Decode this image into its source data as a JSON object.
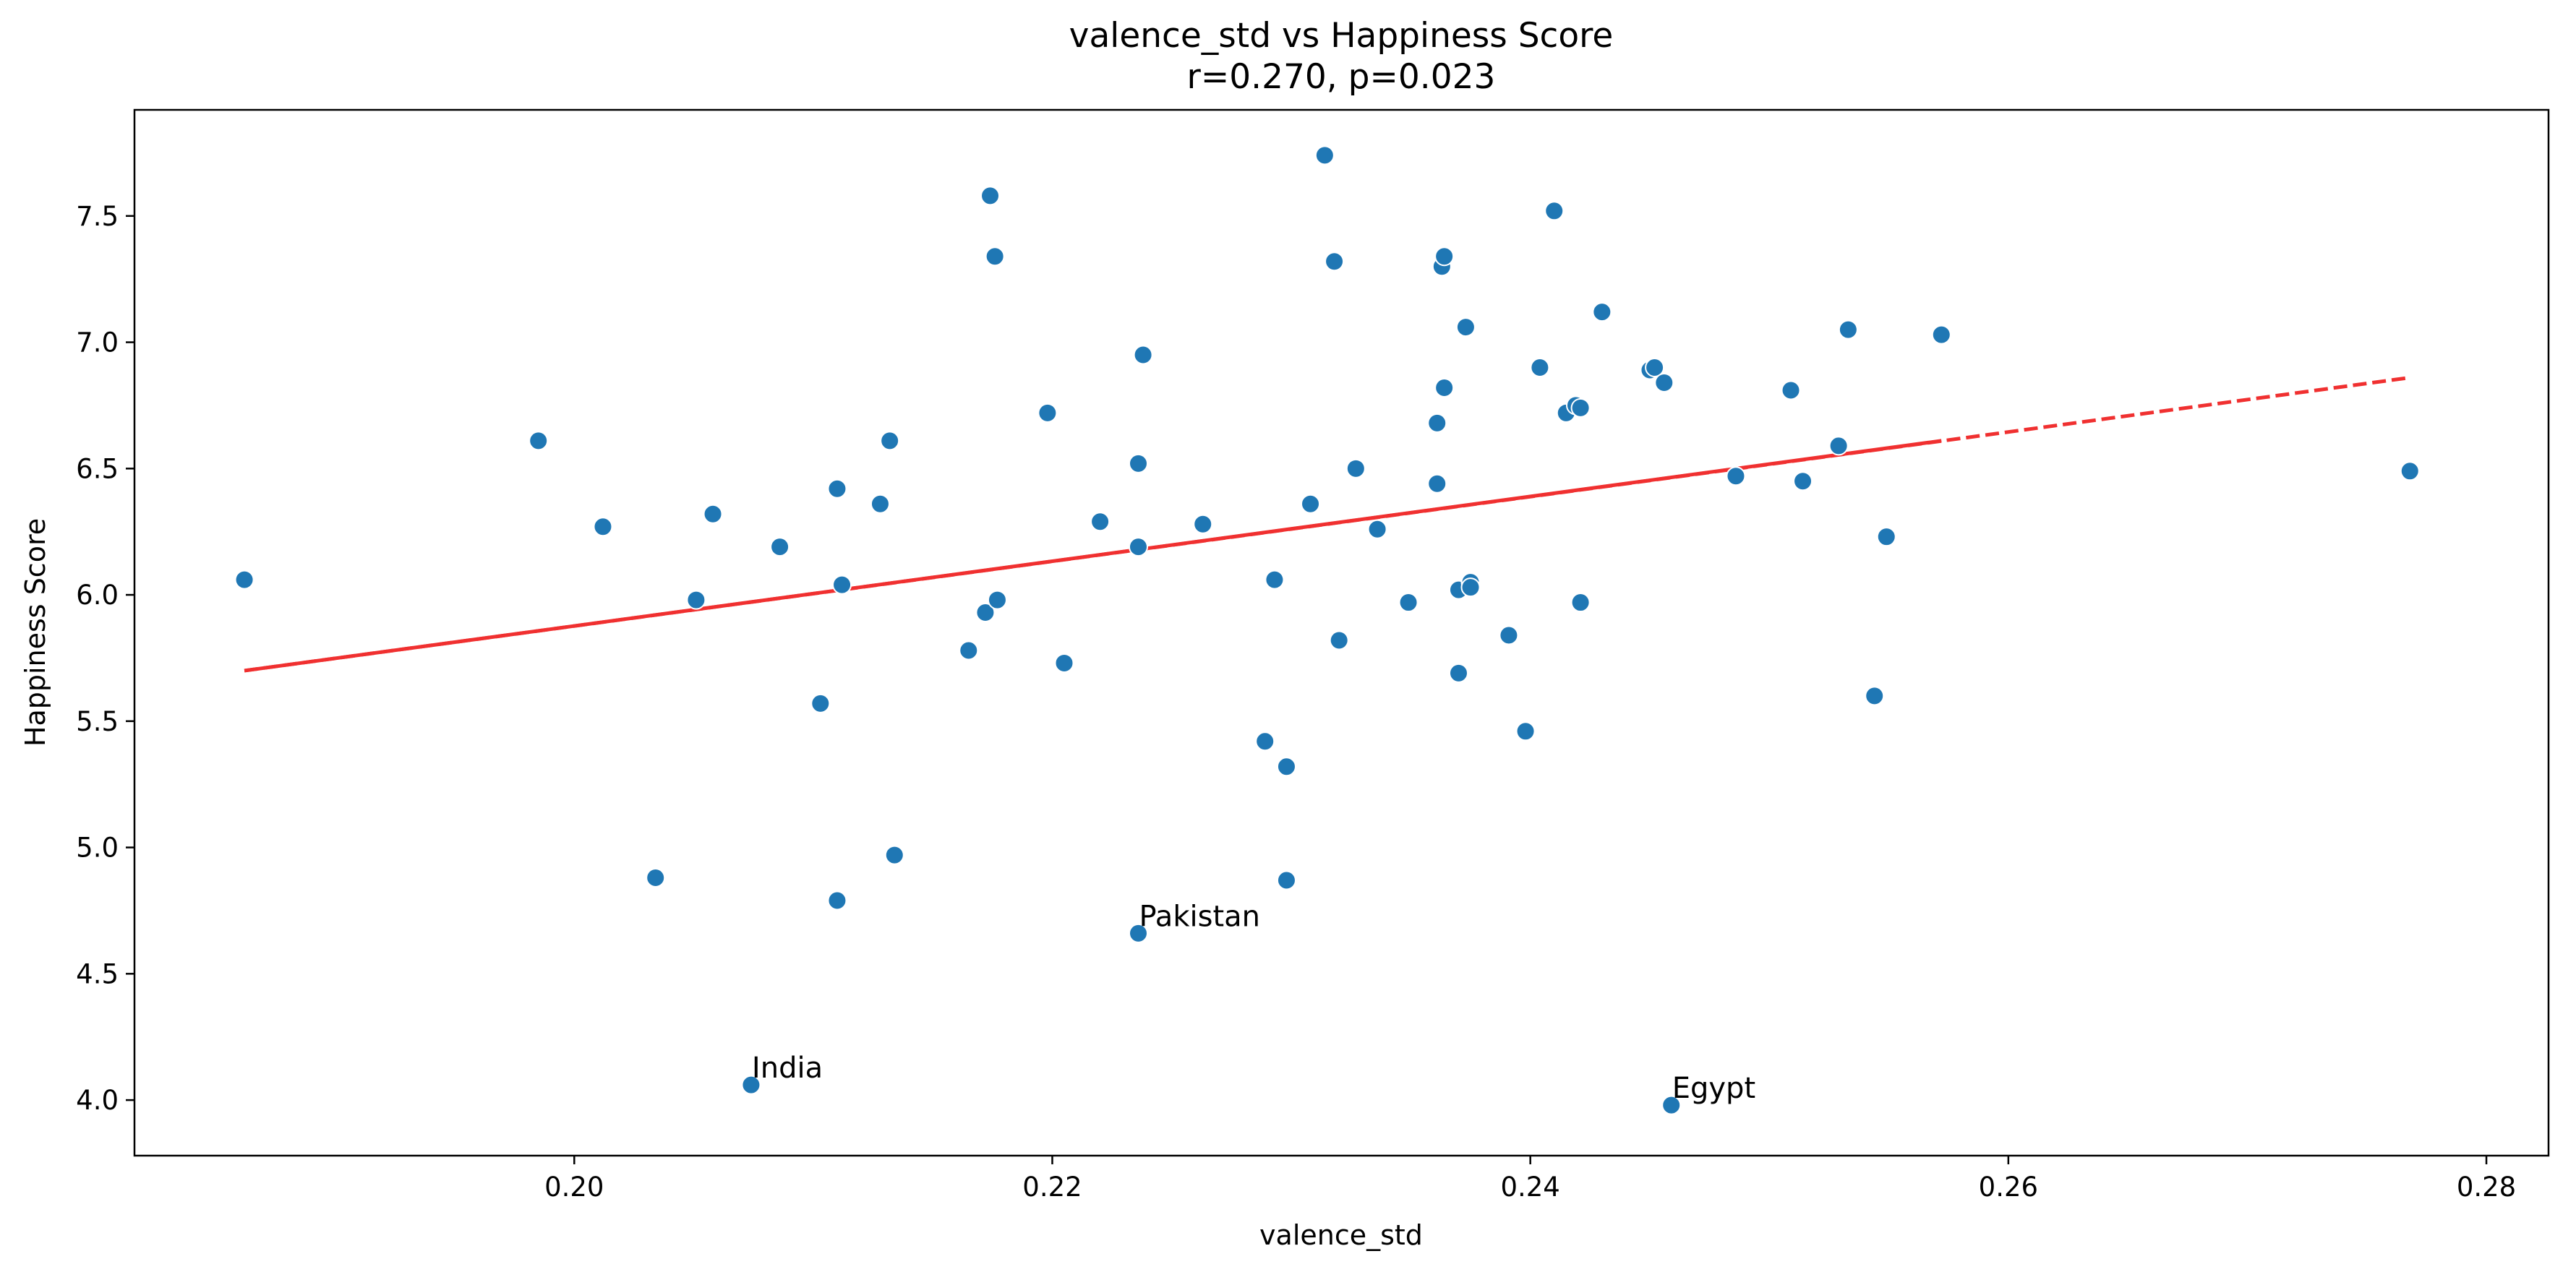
{
  "chart_data": {
    "type": "scatter",
    "title": "valence_std vs Happiness Score",
    "subtitle": "r=0.270, p=0.023",
    "xlabel": "valence_std",
    "ylabel": "Happiness Score",
    "xlim": [
      0.1816,
      0.2826
    ],
    "ylim": [
      3.78,
      7.92
    ],
    "xticks": [
      0.2,
      0.22,
      0.24,
      0.26,
      0.28
    ],
    "xtick_labels": [
      "0.20",
      "0.22",
      "0.24",
      "0.26",
      "0.28"
    ],
    "yticks": [
      4.0,
      4.5,
      5.0,
      5.5,
      6.0,
      6.5,
      7.0,
      7.5
    ],
    "ytick_labels": [
      "4.0",
      "4.5",
      "5.0",
      "5.5",
      "6.0",
      "6.5",
      "7.0",
      "7.5"
    ],
    "grid": false,
    "colors": {
      "points": "#1f77b4",
      "point_edge": "#ffffff",
      "regression": "#f03030"
    },
    "points": [
      {
        "x": 0.1862,
        "y": 6.06
      },
      {
        "x": 0.1985,
        "y": 6.61
      },
      {
        "x": 0.2012,
        "y": 6.27
      },
      {
        "x": 0.2034,
        "y": 4.88
      },
      {
        "x": 0.2051,
        "y": 5.98
      },
      {
        "x": 0.2058,
        "y": 6.32
      },
      {
        "x": 0.2074,
        "y": 4.06,
        "label": "India"
      },
      {
        "x": 0.2086,
        "y": 6.19
      },
      {
        "x": 0.2103,
        "y": 5.57
      },
      {
        "x": 0.211,
        "y": 6.42
      },
      {
        "x": 0.211,
        "y": 4.79
      },
      {
        "x": 0.2112,
        "y": 6.04
      },
      {
        "x": 0.2128,
        "y": 6.36
      },
      {
        "x": 0.2132,
        "y": 6.61
      },
      {
        "x": 0.2134,
        "y": 4.97
      },
      {
        "x": 0.2165,
        "y": 5.78
      },
      {
        "x": 0.2172,
        "y": 5.93
      },
      {
        "x": 0.2174,
        "y": 7.58
      },
      {
        "x": 0.2176,
        "y": 7.34
      },
      {
        "x": 0.2177,
        "y": 5.98
      },
      {
        "x": 0.2198,
        "y": 6.72
      },
      {
        "x": 0.2205,
        "y": 5.73
      },
      {
        "x": 0.222,
        "y": 6.29
      },
      {
        "x": 0.2236,
        "y": 6.52
      },
      {
        "x": 0.2236,
        "y": 6.19
      },
      {
        "x": 0.2236,
        "y": 4.66,
        "label": "Pakistan"
      },
      {
        "x": 0.2238,
        "y": 6.95
      },
      {
        "x": 0.2263,
        "y": 6.28
      },
      {
        "x": 0.2289,
        "y": 5.42
      },
      {
        "x": 0.2293,
        "y": 6.06
      },
      {
        "x": 0.2298,
        "y": 5.32
      },
      {
        "x": 0.2298,
        "y": 4.87
      },
      {
        "x": 0.2308,
        "y": 6.36
      },
      {
        "x": 0.2314,
        "y": 7.74
      },
      {
        "x": 0.2318,
        "y": 7.32
      },
      {
        "x": 0.232,
        "y": 5.82
      },
      {
        "x": 0.2327,
        "y": 6.5
      },
      {
        "x": 0.2336,
        "y": 6.26
      },
      {
        "x": 0.2349,
        "y": 5.97
      },
      {
        "x": 0.2361,
        "y": 6.44
      },
      {
        "x": 0.2361,
        "y": 6.68
      },
      {
        "x": 0.2363,
        "y": 7.3
      },
      {
        "x": 0.2364,
        "y": 7.34
      },
      {
        "x": 0.2364,
        "y": 6.82
      },
      {
        "x": 0.237,
        "y": 6.02
      },
      {
        "x": 0.237,
        "y": 5.69
      },
      {
        "x": 0.2373,
        "y": 7.06
      },
      {
        "x": 0.2375,
        "y": 6.05
      },
      {
        "x": 0.2375,
        "y": 6.03
      },
      {
        "x": 0.2391,
        "y": 5.84
      },
      {
        "x": 0.2398,
        "y": 5.46
      },
      {
        "x": 0.2404,
        "y": 6.9
      },
      {
        "x": 0.241,
        "y": 7.52
      },
      {
        "x": 0.2415,
        "y": 6.72
      },
      {
        "x": 0.2419,
        "y": 6.75
      },
      {
        "x": 0.2421,
        "y": 6.74
      },
      {
        "x": 0.2421,
        "y": 5.97
      },
      {
        "x": 0.243,
        "y": 7.12
      },
      {
        "x": 0.245,
        "y": 6.89
      },
      {
        "x": 0.2452,
        "y": 6.9
      },
      {
        "x": 0.2456,
        "y": 6.84
      },
      {
        "x": 0.2459,
        "y": 3.98,
        "label": "Egypt"
      },
      {
        "x": 0.2486,
        "y": 6.47
      },
      {
        "x": 0.2509,
        "y": 6.81
      },
      {
        "x": 0.2514,
        "y": 6.45
      },
      {
        "x": 0.2529,
        "y": 6.59
      },
      {
        "x": 0.2533,
        "y": 7.05
      },
      {
        "x": 0.2544,
        "y": 5.6
      },
      {
        "x": 0.2549,
        "y": 6.23
      },
      {
        "x": 0.2572,
        "y": 7.03
      },
      {
        "x": 0.2768,
        "y": 6.49
      }
    ],
    "regression": {
      "solid": [
        [
          0.1862,
          5.7
        ],
        [
          0.2572,
          6.61
        ]
      ],
      "dashed": [
        [
          0.1862,
          5.7
        ],
        [
          0.2768,
          6.86
        ]
      ]
    }
  }
}
